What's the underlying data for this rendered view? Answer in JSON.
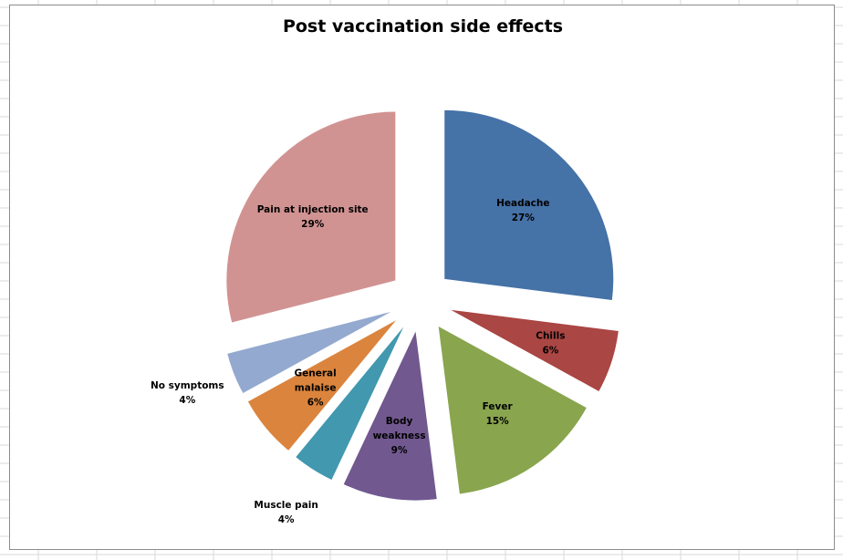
{
  "chart_data": {
    "type": "pie",
    "title": "Post vaccination side effects",
    "exploded": true,
    "legend": "none",
    "slices": [
      {
        "name": "Headache",
        "label_lines": [
          "Headache"
        ],
        "value": 27,
        "value_label": "27%",
        "color": "#4572a7",
        "label_side": "inside"
      },
      {
        "name": "Chills",
        "label_lines": [
          "Chills"
        ],
        "value": 6,
        "value_label": "6%",
        "color": "#aa4643",
        "label_side": "inside"
      },
      {
        "name": "Fever",
        "label_lines": [
          "Fever"
        ],
        "value": 15,
        "value_label": "15%",
        "color": "#89a54e",
        "label_side": "inside"
      },
      {
        "name": "Body weakness",
        "label_lines": [
          "Body",
          "weakness"
        ],
        "value": 9,
        "value_label": "9%",
        "color": "#71588f",
        "label_side": "inside"
      },
      {
        "name": "Muscle pain",
        "label_lines": [
          "Muscle pain"
        ],
        "value": 4,
        "value_label": "4%",
        "color": "#4198af",
        "label_side": "outside"
      },
      {
        "name": "General malaise",
        "label_lines": [
          "General",
          "malaise"
        ],
        "value": 6,
        "value_label": "6%",
        "color": "#db843d",
        "label_side": "inside"
      },
      {
        "name": "No symptoms",
        "label_lines": [
          "No symptoms"
        ],
        "value": 4,
        "value_label": "4%",
        "color": "#93a9cf",
        "label_side": "outside"
      },
      {
        "name": "Pain at injection site",
        "label_lines": [
          "Pain at injection site"
        ],
        "value": 29,
        "value_label": "29%",
        "color": "#d19392",
        "label_side": "inside"
      }
    ]
  }
}
